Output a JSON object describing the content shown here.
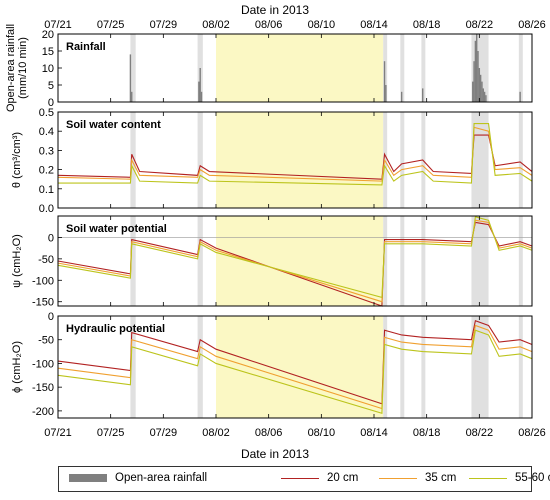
{
  "chart_data": {
    "type": "line",
    "xlabel": "Date in 2013",
    "x_ticks": [
      "07/21",
      "07/25",
      "07/29",
      "08/02",
      "08/06",
      "08/10",
      "08/14",
      "08/18",
      "08/22",
      "08/26"
    ],
    "x_range_days": [
      0,
      36
    ],
    "shaded_period_days": [
      12,
      24.7
    ],
    "rain_event_days": [
      [
        5.5,
        5.9
      ],
      [
        10.6,
        11.0
      ],
      [
        24.7,
        25.0
      ],
      [
        26.0,
        26.3
      ],
      [
        27.6,
        27.9
      ],
      [
        31.4,
        32.7
      ],
      [
        35.0,
        35.3
      ]
    ],
    "series": [
      {
        "name": "20 cm",
        "color": "#b22222"
      },
      {
        "name": "35 cm",
        "color": "#f0a030"
      },
      {
        "name": "55-60 cm",
        "color": "#bcc41c"
      }
    ],
    "panels": [
      {
        "title": "Rainfall",
        "ylabel": "Open-area rainfall (mm/10 min)",
        "ylim": [
          0,
          20
        ],
        "yticks": [
          "0",
          "5",
          "10",
          "15",
          "20"
        ],
        "bars": [
          [
            5.5,
            14
          ],
          [
            5.6,
            3
          ],
          [
            10.7,
            6
          ],
          [
            10.8,
            10
          ],
          [
            10.9,
            3
          ],
          [
            24.8,
            12
          ],
          [
            24.9,
            5
          ],
          [
            26.1,
            3
          ],
          [
            27.7,
            4
          ],
          [
            31.5,
            6
          ],
          [
            31.6,
            12
          ],
          [
            31.7,
            18
          ],
          [
            31.8,
            20
          ],
          [
            31.9,
            15
          ],
          [
            32.0,
            10
          ],
          [
            32.1,
            8
          ],
          [
            32.2,
            6
          ],
          [
            32.3,
            4
          ],
          [
            32.4,
            3
          ],
          [
            32.5,
            2
          ],
          [
            35.1,
            3
          ]
        ],
        "series_values": []
      },
      {
        "title": "Soil water content",
        "ylabel": "θ (cm³/cm³)",
        "ylim": [
          0,
          0.5
        ],
        "yticks": [
          "0.0",
          "0.1",
          "0.2",
          "0.3",
          "0.4",
          "0.5"
        ],
        "series_values": [
          {
            "name": "20 cm",
            "points": [
              [
                0,
                0.17
              ],
              [
                5.5,
                0.16
              ],
              [
                5.6,
                0.28
              ],
              [
                6.2,
                0.19
              ],
              [
                10.6,
                0.17
              ],
              [
                10.8,
                0.22
              ],
              [
                11.5,
                0.19
              ],
              [
                24.6,
                0.15
              ],
              [
                24.8,
                0.28
              ],
              [
                25.5,
                0.19
              ],
              [
                26.1,
                0.23
              ],
              [
                27.7,
                0.25
              ],
              [
                28.5,
                0.19
              ],
              [
                31.4,
                0.18
              ],
              [
                31.6,
                0.38
              ],
              [
                32.7,
                0.38
              ],
              [
                33.2,
                0.22
              ],
              [
                35.1,
                0.24
              ],
              [
                36,
                0.19
              ]
            ]
          },
          {
            "name": "35 cm",
            "points": [
              [
                0,
                0.16
              ],
              [
                5.5,
                0.15
              ],
              [
                5.6,
                0.25
              ],
              [
                6.2,
                0.17
              ],
              [
                10.6,
                0.16
              ],
              [
                10.8,
                0.2
              ],
              [
                11.5,
                0.17
              ],
              [
                24.6,
                0.14
              ],
              [
                24.8,
                0.25
              ],
              [
                25.5,
                0.17
              ],
              [
                26.1,
                0.2
              ],
              [
                27.7,
                0.22
              ],
              [
                28.5,
                0.17
              ],
              [
                31.4,
                0.16
              ],
              [
                31.6,
                0.42
              ],
              [
                32.7,
                0.4
              ],
              [
                33.2,
                0.2
              ],
              [
                35.1,
                0.21
              ],
              [
                36,
                0.17
              ]
            ]
          },
          {
            "name": "55-60 cm",
            "points": [
              [
                0,
                0.13
              ],
              [
                5.5,
                0.13
              ],
              [
                5.6,
                0.22
              ],
              [
                6.2,
                0.14
              ],
              [
                10.6,
                0.13
              ],
              [
                10.8,
                0.17
              ],
              [
                11.5,
                0.14
              ],
              [
                24.6,
                0.12
              ],
              [
                24.8,
                0.22
              ],
              [
                25.5,
                0.14
              ],
              [
                26.1,
                0.17
              ],
              [
                27.7,
                0.19
              ],
              [
                28.5,
                0.14
              ],
              [
                31.4,
                0.13
              ],
              [
                31.6,
                0.44
              ],
              [
                32.7,
                0.44
              ],
              [
                33.2,
                0.17
              ],
              [
                35.1,
                0.18
              ],
              [
                36,
                0.14
              ]
            ]
          }
        ]
      },
      {
        "title": "Soil water potential",
        "ylabel": "ψ (cmH₂O)",
        "ylim": [
          -160,
          50
        ],
        "yticks": [
          "-150",
          "-100",
          "-50",
          "0"
        ],
        "series_values": [
          {
            "name": "20 cm",
            "points": [
              [
                0,
                -55
              ],
              [
                5.5,
                -85
              ],
              [
                5.6,
                -5
              ],
              [
                10.6,
                -40
              ],
              [
                10.8,
                -5
              ],
              [
                12,
                -25
              ],
              [
                24.6,
                -160
              ],
              [
                24.8,
                -5
              ],
              [
                26.1,
                -5
              ],
              [
                27.7,
                -5
              ],
              [
                31.4,
                -10
              ],
              [
                31.7,
                35
              ],
              [
                32.7,
                30
              ],
              [
                33.5,
                -20
              ],
              [
                35.1,
                -10
              ],
              [
                36,
                -20
              ]
            ]
          },
          {
            "name": "35 cm",
            "points": [
              [
                0,
                -60
              ],
              [
                5.5,
                -90
              ],
              [
                5.6,
                -10
              ],
              [
                10.6,
                -45
              ],
              [
                10.8,
                -10
              ],
              [
                12,
                -30
              ],
              [
                24.6,
                -150
              ],
              [
                24.8,
                -10
              ],
              [
                26.1,
                -10
              ],
              [
                27.7,
                -10
              ],
              [
                31.4,
                -15
              ],
              [
                31.7,
                40
              ],
              [
                32.7,
                35
              ],
              [
                33.5,
                -25
              ],
              [
                35.1,
                -15
              ],
              [
                36,
                -25
              ]
            ]
          },
          {
            "name": "55-60 cm",
            "points": [
              [
                0,
                -65
              ],
              [
                5.5,
                -95
              ],
              [
                5.6,
                -15
              ],
              [
                10.6,
                -50
              ],
              [
                10.8,
                -15
              ],
              [
                12,
                -35
              ],
              [
                24.6,
                -140
              ],
              [
                24.8,
                -15
              ],
              [
                26.1,
                -15
              ],
              [
                27.7,
                -15
              ],
              [
                31.4,
                -20
              ],
              [
                31.7,
                48
              ],
              [
                32.7,
                40
              ],
              [
                33.5,
                -30
              ],
              [
                35.1,
                -20
              ],
              [
                36,
                -30
              ]
            ]
          }
        ]
      },
      {
        "title": "Hydraulic potential",
        "ylabel": "ϕ (cmH₂O)",
        "ylim": [
          -215,
          0
        ],
        "yticks": [
          "-200",
          "-150",
          "-100",
          "-50",
          "0"
        ],
        "series_values": [
          {
            "name": "20 cm",
            "points": [
              [
                0,
                -95
              ],
              [
                5.5,
                -115
              ],
              [
                5.6,
                -35
              ],
              [
                10.6,
                -75
              ],
              [
                10.8,
                -50
              ],
              [
                12,
                -70
              ],
              [
                24.6,
                -185
              ],
              [
                24.8,
                -30
              ],
              [
                26.1,
                -40
              ],
              [
                27.7,
                -45
              ],
              [
                31.4,
                -50
              ],
              [
                31.7,
                -10
              ],
              [
                32.7,
                -20
              ],
              [
                33.5,
                -55
              ],
              [
                35.1,
                -50
              ],
              [
                36,
                -60
              ]
            ]
          },
          {
            "name": "35 cm",
            "points": [
              [
                0,
                -110
              ],
              [
                5.5,
                -130
              ],
              [
                5.6,
                -50
              ],
              [
                10.6,
                -90
              ],
              [
                10.8,
                -65
              ],
              [
                12,
                -85
              ],
              [
                24.6,
                -195
              ],
              [
                24.8,
                -45
              ],
              [
                26.1,
                -55
              ],
              [
                27.7,
                -60
              ],
              [
                31.4,
                -65
              ],
              [
                31.7,
                -20
              ],
              [
                32.7,
                -30
              ],
              [
                33.5,
                -70
              ],
              [
                35.1,
                -65
              ],
              [
                36,
                -75
              ]
            ]
          },
          {
            "name": "55-60 cm",
            "points": [
              [
                0,
                -125
              ],
              [
                5.5,
                -145
              ],
              [
                5.6,
                -65
              ],
              [
                10.6,
                -105
              ],
              [
                10.8,
                -80
              ],
              [
                12,
                -100
              ],
              [
                24.6,
                -205
              ],
              [
                24.8,
                -60
              ],
              [
                26.1,
                -70
              ],
              [
                27.7,
                -75
              ],
              [
                31.4,
                -80
              ],
              [
                31.7,
                -30
              ],
              [
                32.7,
                -40
              ],
              [
                33.5,
                -85
              ],
              [
                35.1,
                -80
              ],
              [
                36,
                -90
              ]
            ]
          }
        ]
      }
    ],
    "legend": {
      "rain_label": "Open-area rainfall",
      "items": [
        "20 cm",
        "35 cm",
        "55-60 cm"
      ]
    }
  }
}
